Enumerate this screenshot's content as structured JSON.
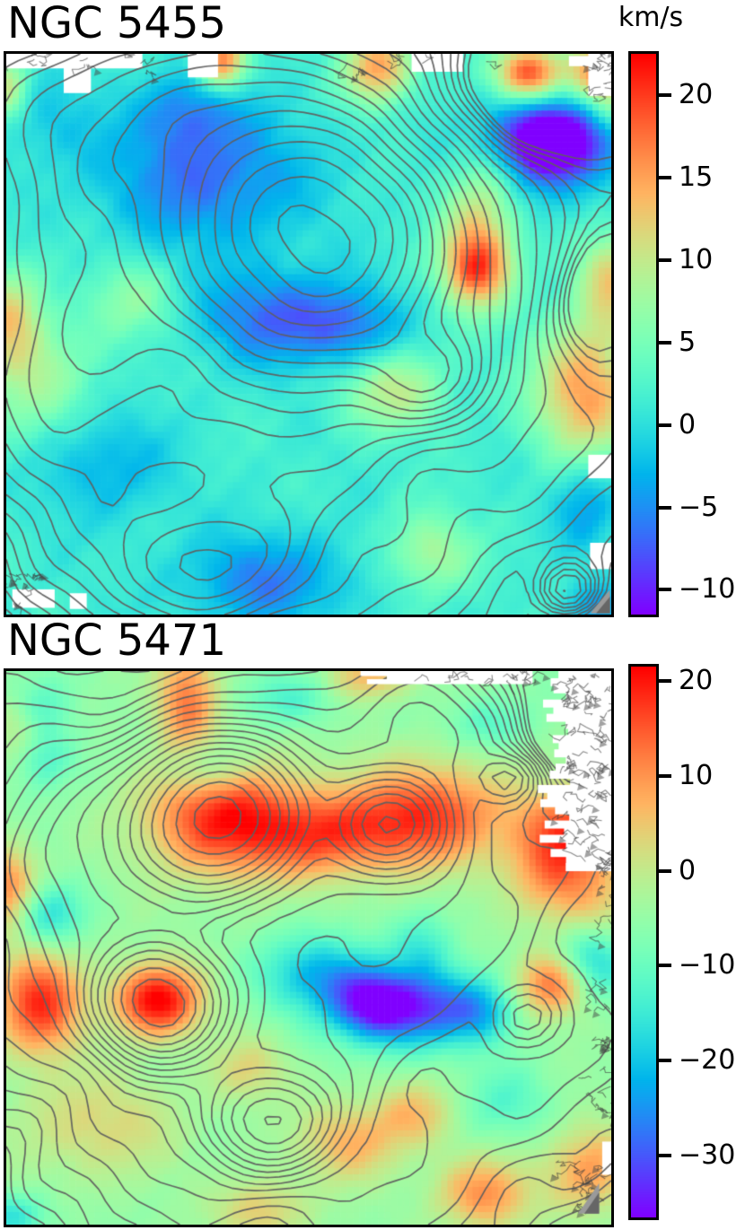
{
  "figure": {
    "colorbar_unit": "km/s"
  },
  "chart_data": [
    {
      "type": "heatmap",
      "title": "NGC 5455",
      "subtitle": "",
      "units": "km/s",
      "colormap": "rainbow",
      "overlay": "gray surface-brightness contours",
      "vmin": -11.5,
      "vmax": 22.5,
      "colorbar_ticks": [
        20,
        15,
        10,
        5,
        0,
        -5,
        -10
      ],
      "colorbar_tick_labels": [
        "20",
        "15",
        "10",
        "5",
        "0",
        "−5",
        "−10"
      ],
      "velocity_base": 1.5,
      "texture_noise": 1.4,
      "velocity_blobs": [
        [
          0.33,
          0.22,
          0.12,
          0.09,
          -8
        ],
        [
          0.3,
          0.1,
          0.055,
          0.05,
          -5
        ],
        [
          0.44,
          0.47,
          0.09,
          0.06,
          -8
        ],
        [
          0.57,
          0.49,
          0.06,
          0.05,
          -6
        ],
        [
          0.9,
          0.155,
          0.055,
          0.045,
          -15
        ],
        [
          0.9,
          0.16,
          0.1,
          0.08,
          -6
        ],
        [
          0.865,
          0.035,
          0.04,
          0.035,
          19
        ],
        [
          0.615,
          0.025,
          0.04,
          0.045,
          14
        ],
        [
          0.355,
          0.012,
          0.028,
          0.035,
          16
        ],
        [
          0.97,
          0.025,
          0.035,
          0.035,
          10
        ],
        [
          1.0,
          0.07,
          0.04,
          0.05,
          9
        ],
        [
          0.785,
          0.3,
          0.045,
          0.09,
          10
        ],
        [
          0.775,
          0.385,
          0.038,
          0.045,
          13
        ],
        [
          0.96,
          0.6,
          0.06,
          0.09,
          14
        ],
        [
          1.0,
          0.4,
          0.04,
          0.06,
          10
        ],
        [
          0.005,
          0.47,
          0.04,
          0.06,
          9
        ],
        [
          0.04,
          0.58,
          0.08,
          0.08,
          6
        ],
        [
          0.0,
          0.06,
          0.025,
          0.04,
          9
        ],
        [
          0.21,
          0.44,
          0.055,
          0.05,
          5
        ],
        [
          0.64,
          0.6,
          0.06,
          0.05,
          8
        ],
        [
          0.7,
          0.89,
          0.05,
          0.05,
          7
        ],
        [
          0.43,
          0.94,
          0.1,
          0.06,
          -7
        ],
        [
          0.16,
          0.73,
          0.075,
          0.07,
          -5
        ],
        [
          0.07,
          0.12,
          0.06,
          0.06,
          -3
        ],
        [
          0.975,
          0.985,
          0.04,
          0.03,
          -5
        ],
        [
          0.96,
          0.8,
          0.04,
          0.06,
          -6
        ]
      ],
      "contour_noise": 2.2,
      "contour_levels": {
        "start": 5.5,
        "ratio": 1.17,
        "count": 20
      },
      "contour_peaks": [
        [
          0.51,
          0.335,
          0.125,
          0.125,
          100
        ],
        [
          0.46,
          0.47,
          0.42,
          0.4,
          22
        ],
        [
          0.28,
          0.12,
          0.2,
          0.13,
          26
        ],
        [
          0.7,
          0.575,
          0.065,
          0.055,
          24
        ],
        [
          0.33,
          0.92,
          0.1,
          0.07,
          15
        ],
        [
          0.1,
          0.6,
          0.1,
          0.22,
          10
        ],
        [
          0.93,
          0.955,
          0.03,
          0.03,
          12
        ],
        [
          0.88,
          0.08,
          0.1,
          0.08,
          -12
        ],
        [
          0.97,
          0.42,
          0.05,
          0.1,
          -8
        ]
      ],
      "masked_rects": [
        [
          0.0,
          0.0,
          0.225,
          0.026
        ],
        [
          0.095,
          0.015,
          0.045,
          0.055
        ],
        [
          0.3,
          0.0,
          0.05,
          0.042
        ],
        [
          0.67,
          0.0,
          0.085,
          0.032
        ],
        [
          0.93,
          0.004,
          0.034,
          0.018
        ],
        [
          0.962,
          0.0,
          0.038,
          0.075
        ],
        [
          0.962,
          0.715,
          0.038,
          0.042
        ],
        [
          0.965,
          0.872,
          0.035,
          0.047
        ],
        [
          0.01,
          0.955,
          0.07,
          0.033
        ],
        [
          0.105,
          0.962,
          0.028,
          0.028
        ]
      ],
      "noise_patches": [
        [
          0.0,
          0.0,
          0.26,
          0.035,
          10,
          0
        ],
        [
          0.55,
          0.0,
          0.25,
          0.03,
          8,
          0
        ],
        [
          0.962,
          0.0,
          0.038,
          0.08,
          12,
          0
        ],
        [
          0.0,
          0.925,
          0.06,
          0.07,
          10,
          0
        ]
      ],
      "gray_patches": [
        [
          0.965,
          0.955,
          0.033,
          0.043
        ]
      ]
    },
    {
      "type": "heatmap",
      "title": "NGC 5471",
      "subtitle": "",
      "units": "km/s",
      "colormap": "rainbow",
      "overlay": "gray surface-brightness contours",
      "vmin": -36.5,
      "vmax": 21.5,
      "colorbar_ticks": [
        20,
        10,
        0,
        -10,
        -20,
        -30
      ],
      "colorbar_tick_labels": [
        "20",
        "10",
        "0",
        "−10",
        "−20",
        "−30"
      ],
      "velocity_base": -5,
      "texture_noise": 1.6,
      "velocity_blobs": [
        [
          0.35,
          0.26,
          0.085,
          0.075,
          23
        ],
        [
          0.52,
          0.295,
          0.09,
          0.055,
          19
        ],
        [
          0.7,
          0.26,
          0.09,
          0.065,
          21
        ],
        [
          0.95,
          0.28,
          0.07,
          0.055,
          17
        ],
        [
          0.25,
          0.595,
          0.05,
          0.045,
          27
        ],
        [
          0.055,
          0.6,
          0.05,
          0.065,
          23
        ],
        [
          0.3,
          0.05,
          0.035,
          0.07,
          17
        ],
        [
          0.6,
          0.01,
          0.05,
          0.03,
          12
        ],
        [
          0.0,
          0.39,
          0.035,
          0.05,
          17
        ],
        [
          0.905,
          0.565,
          0.04,
          0.04,
          19
        ],
        [
          0.9,
          0.36,
          0.05,
          0.06,
          13
        ],
        [
          0.965,
          0.45,
          0.05,
          0.08,
          10
        ],
        [
          0.57,
          0.85,
          0.06,
          0.05,
          12
        ],
        [
          0.675,
          0.8,
          0.045,
          0.04,
          10
        ],
        [
          0.79,
          0.945,
          0.055,
          0.045,
          15
        ],
        [
          0.965,
          0.9,
          0.05,
          0.055,
          14
        ],
        [
          0.42,
          0.975,
          0.05,
          0.04,
          10
        ],
        [
          0.15,
          0.82,
          0.1,
          0.07,
          8
        ],
        [
          0.4,
          0.72,
          0.045,
          0.04,
          8
        ],
        [
          0.02,
          0.1,
          0.03,
          0.05,
          8
        ],
        [
          0.61,
          0.605,
          0.05,
          0.045,
          -29
        ],
        [
          0.7,
          0.61,
          0.055,
          0.05,
          -20
        ],
        [
          0.52,
          0.55,
          0.065,
          0.05,
          -17
        ],
        [
          0.69,
          0.5,
          0.035,
          0.045,
          -8
        ],
        [
          0.785,
          0.615,
          0.04,
          0.04,
          -14
        ],
        [
          0.965,
          0.52,
          0.045,
          0.05,
          -19
        ],
        [
          0.07,
          0.44,
          0.04,
          0.04,
          -12
        ],
        [
          0.33,
          0.175,
          0.05,
          0.04,
          -11
        ],
        [
          0.06,
          0.16,
          0.035,
          0.04,
          -9
        ],
        [
          0.045,
          0.065,
          0.04,
          0.04,
          -8
        ],
        [
          0.47,
          0.05,
          0.055,
          0.035,
          -8
        ],
        [
          0.8,
          0.095,
          0.05,
          0.035,
          -7
        ],
        [
          0.005,
          0.985,
          0.045,
          0.03,
          -11
        ],
        [
          0.825,
          0.78,
          0.05,
          0.045,
          -7
        ]
      ],
      "contour_noise": 2.5,
      "contour_levels": {
        "start": 4.5,
        "ratio": 1.18,
        "count": 20
      },
      "contour_peaks": [
        [
          0.35,
          0.265,
          0.085,
          0.085,
          100
        ],
        [
          0.63,
          0.275,
          0.06,
          0.055,
          50
        ],
        [
          0.25,
          0.6,
          0.065,
          0.065,
          75
        ],
        [
          0.44,
          0.815,
          0.065,
          0.055,
          30
        ],
        [
          0.5,
          0.48,
          0.45,
          0.42,
          18
        ],
        [
          0.12,
          0.32,
          0.1,
          0.13,
          13
        ],
        [
          0.83,
          0.195,
          0.032,
          0.028,
          14
        ],
        [
          0.86,
          0.625,
          0.035,
          0.035,
          11
        ],
        [
          0.7,
          0.1,
          0.08,
          0.07,
          12
        ],
        [
          0.94,
          0.1,
          0.08,
          0.1,
          -10
        ]
      ],
      "masked_rects": [
        [
          0.8,
          0.0,
          0.06,
          0.014
        ],
        [
          0.985,
          0.85,
          0.015,
          0.06
        ]
      ],
      "noise_patches": [
        [
          0.875,
          0.0,
          0.125,
          0.36,
          60,
          1
        ],
        [
          0.57,
          0.0,
          0.3,
          0.022,
          12,
          1
        ],
        [
          0.965,
          0.3,
          0.035,
          0.52,
          25,
          0
        ],
        [
          0.94,
          0.88,
          0.06,
          0.1,
          14,
          0
        ]
      ],
      "gray_patches": [
        [
          0.945,
          0.925,
          0.035,
          0.055
        ]
      ]
    }
  ]
}
